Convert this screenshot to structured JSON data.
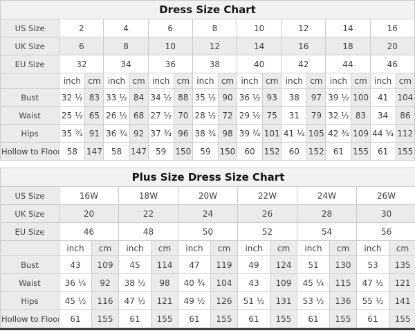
{
  "units": {
    "inch": "inch",
    "cm": "cm"
  },
  "colors": {
    "cell_shaded": "#ebebeb",
    "title_band": "#f2f2f2",
    "border": "#cccccc",
    "text": "#3f3f3f",
    "title_text": "#111111",
    "bottom_strip": "#3e3e3e",
    "cell_white": "#ffffff"
  },
  "chart_data": [
    {
      "type": "table",
      "title": "Dress Size Chart",
      "unit_labels": [
        "inch",
        "cm"
      ],
      "size_rows": [
        {
          "label": "US Size",
          "values": [
            "2",
            "4",
            "6",
            "8",
            "10",
            "12",
            "14",
            "16"
          ]
        },
        {
          "label": "UK Size",
          "values": [
            "6",
            "8",
            "10",
            "12",
            "14",
            "16",
            "18",
            "20"
          ]
        },
        {
          "label": "EU Size",
          "values": [
            "32",
            "34",
            "36",
            "38",
            "40",
            "42",
            "44",
            "46"
          ]
        }
      ],
      "measure_rows": [
        {
          "label": "Bust",
          "inch": [
            "32 ½",
            "33 ½",
            "34 ½",
            "35 ½",
            "36 ½",
            "38",
            "39 ½",
            "41"
          ],
          "cm": [
            "83",
            "84",
            "88",
            "90",
            "93",
            "97",
            "100",
            "104"
          ]
        },
        {
          "label": "Waist",
          "inch": [
            "25 ½",
            "26 ½",
            "27 ½",
            "28 ½",
            "29 ½",
            "31",
            "32 ½",
            "34"
          ],
          "cm": [
            "65",
            "68",
            "70",
            "72",
            "75",
            "79",
            "83",
            "86"
          ]
        },
        {
          "label": "Hips",
          "inch": [
            "35 ¾",
            "36 ¾",
            "37 ¾",
            "38 ¾",
            "39 ¾",
            "41 ¼",
            "42 ¾",
            "44 ¼"
          ],
          "cm": [
            "91",
            "92",
            "96",
            "98",
            "101",
            "105",
            "109",
            "112"
          ]
        },
        {
          "label": "Hollow to Floor",
          "inch": [
            "58",
            "58",
            "59",
            "59",
            "60",
            "60",
            "61",
            "61"
          ],
          "cm": [
            "147",
            "147",
            "150",
            "150",
            "152",
            "152",
            "155",
            "155"
          ]
        }
      ]
    },
    {
      "type": "table",
      "title": "Plus Size Dress Size Chart",
      "unit_labels": [
        "inch",
        "cm"
      ],
      "size_rows": [
        {
          "label": "US Size",
          "values": [
            "16W",
            "18W",
            "20W",
            "22W",
            "24W",
            "26W"
          ]
        },
        {
          "label": "UK Size",
          "values": [
            "20",
            "22",
            "24",
            "26",
            "28",
            "30"
          ]
        },
        {
          "label": "EU Size",
          "values": [
            "46",
            "48",
            "50",
            "52",
            "54",
            "56"
          ]
        }
      ],
      "measure_rows": [
        {
          "label": "Bust",
          "inch": [
            "43",
            "45",
            "47",
            "49",
            "51",
            "53"
          ],
          "cm": [
            "109",
            "114",
            "119",
            "124",
            "130",
            "135"
          ]
        },
        {
          "label": "Waist",
          "inch": [
            "36 ¼",
            "38 ½",
            "40 ¾",
            "43",
            "45 ¼",
            "47 ½"
          ],
          "cm": [
            "92",
            "98",
            "104",
            "109",
            "115",
            "121"
          ]
        },
        {
          "label": "Hips",
          "inch": [
            "45 ½",
            "47 ½",
            "49 ½",
            "51 ½",
            "53 ½",
            "55 ½"
          ],
          "cm": [
            "116",
            "121",
            "126",
            "131",
            "136",
            "141"
          ]
        },
        {
          "label": "Hollow to Floor",
          "inch": [
            "61",
            "61",
            "61",
            "61",
            "61",
            "61"
          ],
          "cm": [
            "155",
            "155",
            "155",
            "155",
            "155",
            "155"
          ]
        }
      ]
    }
  ]
}
